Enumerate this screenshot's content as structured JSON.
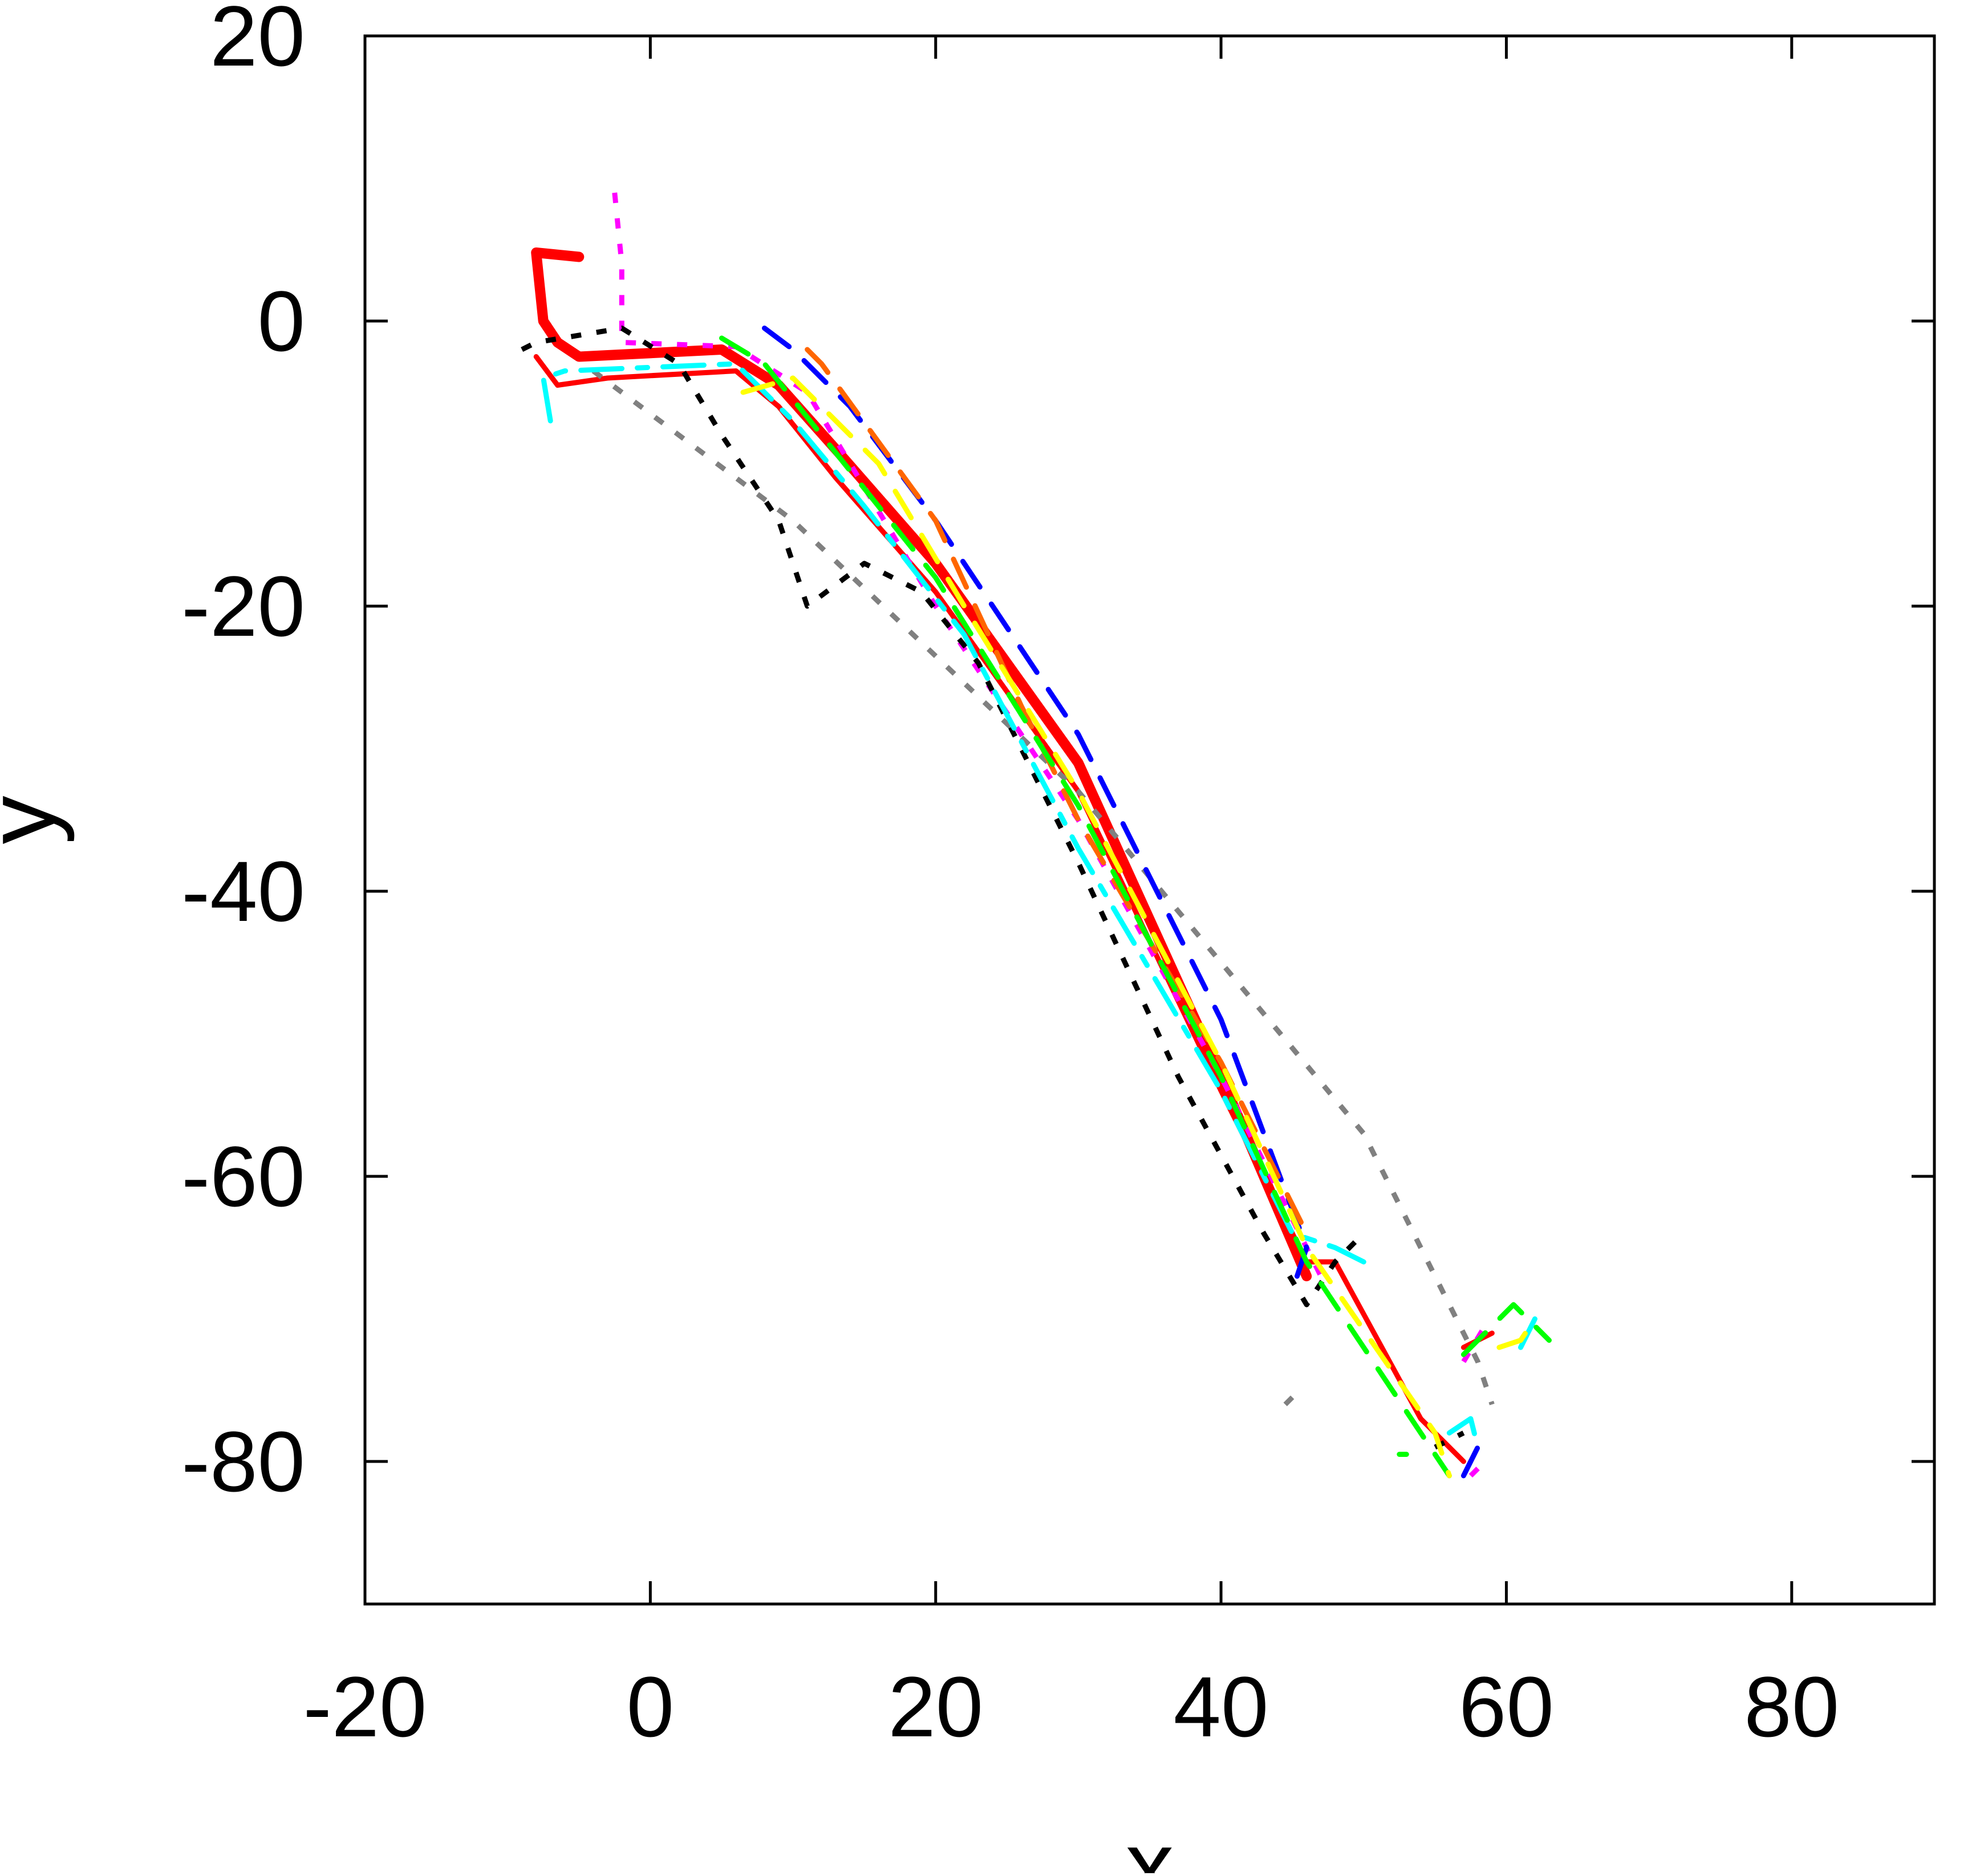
{
  "chart_data": {
    "type": "line",
    "title": "",
    "xlabel": "x",
    "ylabel": "y",
    "xlim": [
      -20,
      90
    ],
    "ylim": [
      -90,
      20
    ],
    "x_ticks": [
      -20,
      0,
      20,
      40,
      60,
      80
    ],
    "y_ticks": [
      20,
      0,
      -20,
      -40,
      -60,
      -80
    ],
    "x_tick_labels": [
      "-20",
      "0",
      "20",
      "40",
      "60",
      "80"
    ],
    "y_tick_labels": [
      "20",
      "0",
      "-20",
      "-40",
      "-60",
      "-80"
    ],
    "grid": false,
    "legend": "none",
    "series": [
      {
        "color": "#ff0000",
        "style": "solid",
        "width": 6,
        "points": [
          [
            -5,
            4.5
          ],
          [
            -8,
            4.8
          ],
          [
            -7.5,
            0
          ],
          [
            -6.5,
            -1.5
          ],
          [
            -5,
            -2.5
          ],
          [
            5,
            -2
          ],
          [
            9,
            -4.5
          ],
          [
            13,
            -9
          ],
          [
            20,
            -17
          ],
          [
            30,
            -31
          ],
          [
            40,
            -53
          ],
          [
            46,
            -67
          ]
        ]
      },
      {
        "color": "#ff0000",
        "style": "solid",
        "width": 3,
        "points": [
          [
            -8,
            -2.5
          ],
          [
            -6.5,
            -4.5
          ],
          [
            -3,
            -4
          ],
          [
            6,
            -3.5
          ],
          [
            9,
            -6
          ],
          [
            13,
            -11
          ],
          [
            20,
            -19
          ],
          [
            30,
            -33
          ],
          [
            40,
            -54
          ],
          [
            46,
            -66
          ],
          [
            48,
            -66
          ],
          [
            54,
            -77
          ],
          [
            57,
            -80
          ]
        ]
      },
      {
        "color": "#ff0000",
        "style": "solid",
        "width": 3,
        "points": [
          [
            57,
            -72
          ],
          [
            59,
            -71
          ]
        ]
      },
      {
        "color": "#ff00ff",
        "style": "dotted",
        "width": 3,
        "points": [
          [
            -2.5,
            9
          ],
          [
            -2,
            4
          ],
          [
            -2,
            0
          ],
          [
            -2,
            -1.5
          ],
          [
            6,
            -1.8
          ],
          [
            11,
            -5
          ],
          [
            20,
            -20
          ],
          [
            30,
            -35
          ],
          [
            40,
            -53
          ],
          [
            46,
            -65
          ],
          [
            47,
            -67
          ]
        ]
      },
      {
        "color": "#ff00ff",
        "style": "dotted",
        "width": 3,
        "points": [
          [
            57,
            -73
          ],
          [
            58.5,
            -70.5
          ]
        ]
      },
      {
        "color": "#ff00ff",
        "style": "dotted",
        "width": 3,
        "points": [
          [
            57.5,
            -81
          ],
          [
            58.5,
            -80
          ]
        ]
      },
      {
        "color": "#000000",
        "style": "dotted",
        "width": 3,
        "points": [
          [
            -9,
            -2
          ],
          [
            -8,
            -1.5
          ],
          [
            -2,
            -0.5
          ],
          [
            2,
            -3
          ],
          [
            5,
            -8
          ],
          [
            9,
            -14
          ],
          [
            11,
            -20
          ],
          [
            15,
            -17
          ],
          [
            19,
            -19
          ],
          [
            23,
            -24
          ],
          [
            30,
            -38
          ],
          [
            37,
            -53
          ],
          [
            43,
            -64
          ],
          [
            46,
            -69
          ],
          [
            48,
            -66
          ],
          [
            50,
            -64
          ]
        ]
      },
      {
        "color": "#000000",
        "style": "dotted",
        "width": 3,
        "points": [
          [
            55,
            -79
          ],
          [
            57,
            -78
          ]
        ]
      },
      {
        "color": "#808080",
        "style": "dotted",
        "width": 3,
        "points": [
          [
            -4,
            -3.5
          ],
          [
            10,
            -14
          ],
          [
            30,
            -33
          ],
          [
            50,
            -57
          ],
          [
            58,
            -73
          ],
          [
            59,
            -76
          ]
        ]
      },
      {
        "color": "#808080",
        "style": "dotted",
        "width": 3,
        "points": [
          [
            44.5,
            -76
          ],
          [
            45,
            -75.5
          ]
        ]
      },
      {
        "color": "#00ffff",
        "style": "dashdot",
        "width": 3,
        "points": [
          [
            -7,
            -7
          ],
          [
            -7.5,
            -4
          ],
          [
            -6,
            -3.5
          ],
          [
            6,
            -3
          ],
          [
            10,
            -7
          ],
          [
            15,
            -13
          ],
          [
            22,
            -22
          ],
          [
            30,
            -37
          ],
          [
            40,
            -54
          ],
          [
            45,
            -64
          ],
          [
            48,
            -65
          ],
          [
            50,
            -66
          ]
        ]
      },
      {
        "color": "#00ffff",
        "style": "dashdot",
        "width": 3,
        "points": [
          [
            56,
            -78
          ],
          [
            57.5,
            -77
          ],
          [
            58,
            -79
          ]
        ]
      },
      {
        "color": "#00ffff",
        "style": "dashdot",
        "width": 3,
        "points": [
          [
            61,
            -72
          ],
          [
            62,
            -70
          ]
        ]
      },
      {
        "color": "#0000ff",
        "style": "dashed",
        "width": 3,
        "points": [
          [
            8,
            -0.5
          ],
          [
            10,
            -2
          ],
          [
            14,
            -6
          ],
          [
            20,
            -14
          ],
          [
            30,
            -29
          ],
          [
            40,
            -49
          ],
          [
            46,
            -65
          ],
          [
            45,
            -68
          ]
        ]
      },
      {
        "color": "#0000ff",
        "style": "dashed",
        "width": 3,
        "points": [
          [
            57,
            -81
          ],
          [
            58,
            -79
          ]
        ]
      },
      {
        "color": "#ff6600",
        "style": "dashed",
        "width": 3,
        "points": [
          [
            11,
            -2
          ],
          [
            12,
            -3
          ],
          [
            20,
            -14
          ],
          [
            26,
            -27
          ],
          [
            30,
            -35
          ],
          [
            40,
            -52
          ],
          [
            46,
            -64
          ]
        ]
      },
      {
        "color": "#00ff00",
        "style": "dashed",
        "width": 3,
        "points": [
          [
            5,
            -1.2
          ],
          [
            8,
            -3
          ],
          [
            12,
            -8
          ],
          [
            20,
            -18
          ],
          [
            30,
            -34
          ],
          [
            40,
            -53
          ],
          [
            46,
            -66
          ],
          [
            52,
            -75
          ],
          [
            56,
            -81
          ]
        ]
      },
      {
        "color": "#00ff00",
        "style": "dashed",
        "width": 3,
        "points": [
          [
            52.5,
            -79.5
          ],
          [
            53,
            -79.5
          ]
        ]
      },
      {
        "color": "#00ff00",
        "style": "dashed",
        "width": 3,
        "points": [
          [
            57,
            -72.5
          ],
          [
            60.5,
            -69
          ],
          [
            62,
            -70.5
          ],
          [
            63,
            -71.5
          ]
        ]
      },
      {
        "color": "#ffff00",
        "style": "dashed",
        "width": 3,
        "points": [
          [
            6.5,
            -5
          ],
          [
            10,
            -4
          ],
          [
            16,
            -10
          ],
          [
            22,
            -20
          ],
          [
            30,
            -33
          ],
          [
            40,
            -52
          ],
          [
            46,
            -65
          ],
          [
            55,
            -78
          ],
          [
            56,
            -81
          ]
        ]
      },
      {
        "color": "#ffff00",
        "style": "dashed",
        "width": 3,
        "points": [
          [
            59.5,
            -72
          ],
          [
            61,
            -71.5
          ],
          [
            62,
            -70
          ]
        ]
      }
    ]
  }
}
